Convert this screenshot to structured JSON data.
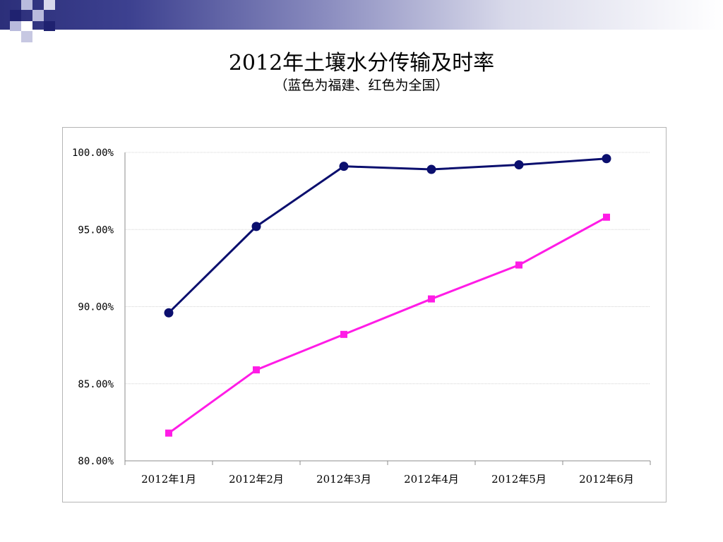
{
  "slide": {
    "title": "2012年土壤水分传输及时率",
    "subtitle": "（蓝色为福建、红色为全国）"
  },
  "colors": {
    "fujian": "#0b0f6e",
    "national": "#ff1ce6",
    "header_band_start": "#2c2f7a",
    "deco_dark": "#1f2270",
    "deco_light": "#b9bbdd",
    "gridline": "#d4d4d4",
    "axis": "#8c8c8c"
  },
  "chart_data": {
    "type": "line",
    "title": "",
    "xlabel": "",
    "ylabel": "",
    "categories": [
      "2012年1月",
      "2012年2月",
      "2012年3月",
      "2012年4月",
      "2012年5月",
      "2012年6月"
    ],
    "y_ticks": [
      "80.00%",
      "85.00%",
      "90.00%",
      "95.00%",
      "100.00%"
    ],
    "ylim": [
      80,
      100
    ],
    "y_unit": "%",
    "grid": true,
    "legend": "none",
    "series": [
      {
        "key": "fujian",
        "color": "#0b0f6e",
        "marker": "circle",
        "values": [
          89.6,
          95.2,
          99.1,
          98.9,
          99.2,
          99.6
        ]
      },
      {
        "key": "national",
        "color": "#ff1ce6",
        "marker": "square",
        "values": [
          81.8,
          85.9,
          88.2,
          90.5,
          92.7,
          95.8
        ]
      }
    ]
  }
}
